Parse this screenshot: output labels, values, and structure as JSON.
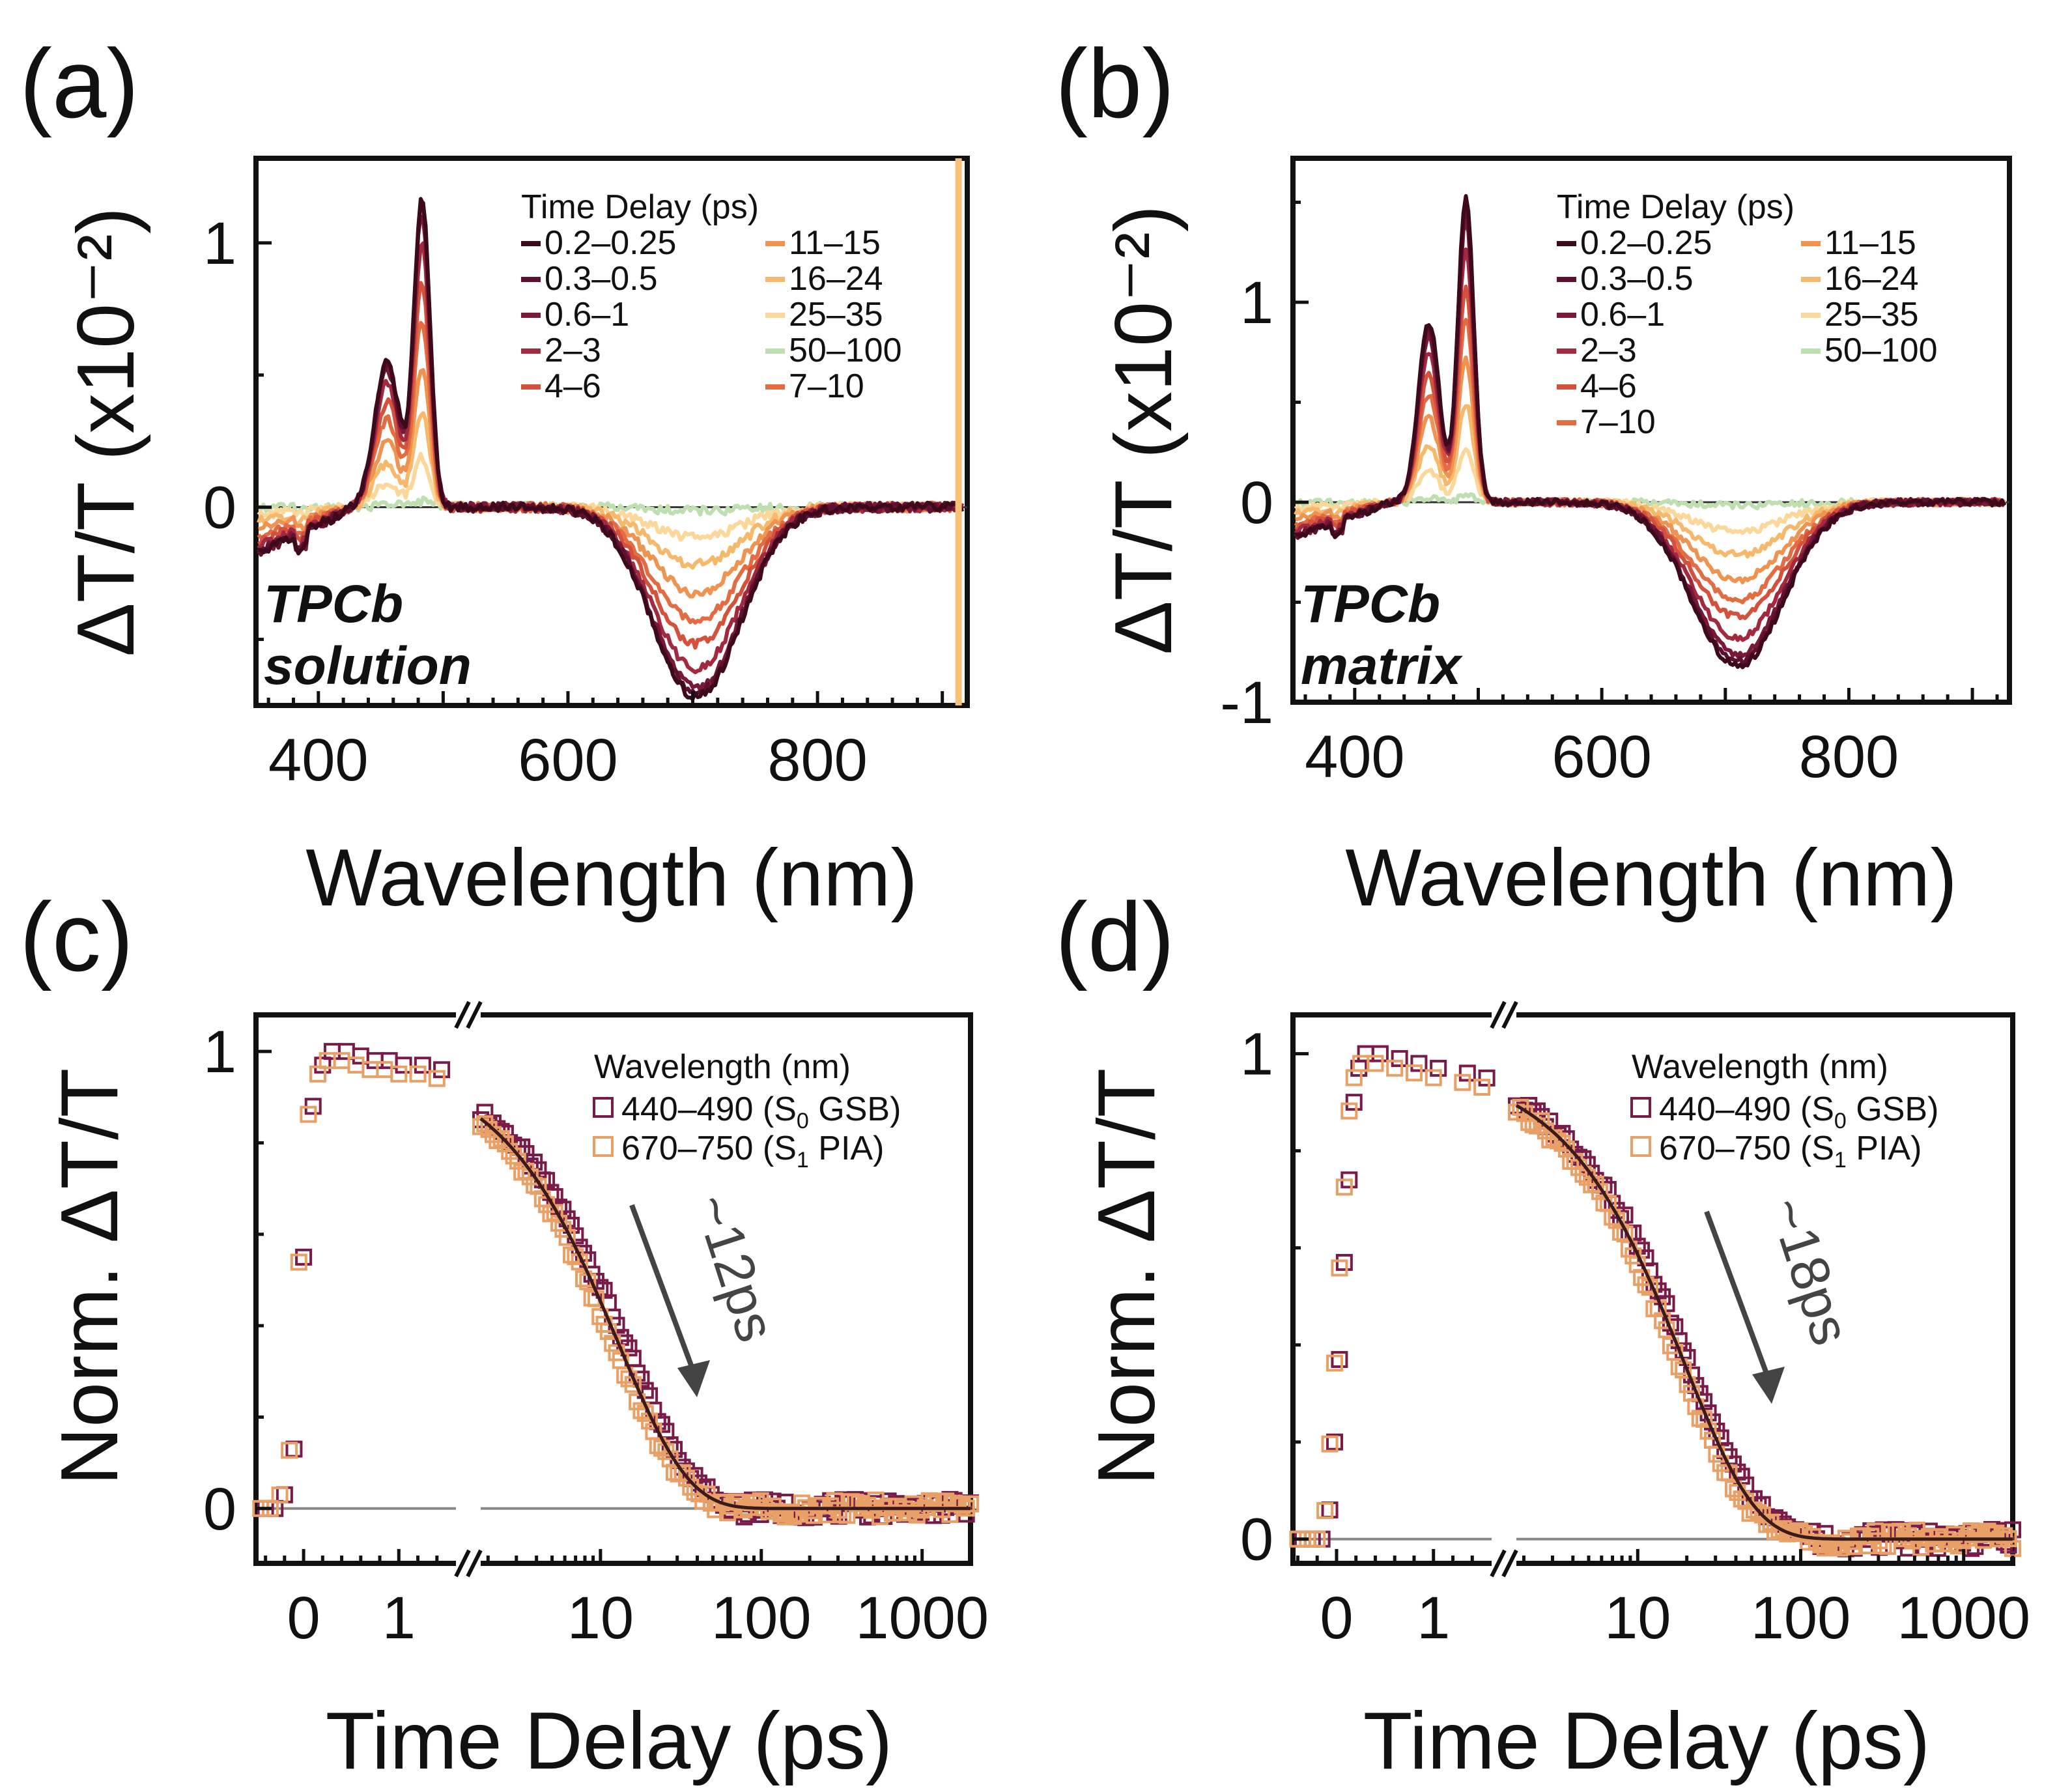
{
  "panels": [
    {
      "letter": "(a)",
      "type": "spectra",
      "sample_line1": "TPCb",
      "sample_line2": "solution",
      "legend_title": "Time Delay (ps)",
      "chart_data": {
        "type": "line",
        "xlabel": "Wavelength (nm)",
        "ylabel": "ΔT/T (x10⁻²)",
        "xlim": [
          350,
          920
        ],
        "ylim": [
          -0.75,
          1.32
        ],
        "xticks": [
          "400",
          "600",
          "800"
        ],
        "yticks": [
          "0",
          "1"
        ],
        "series": [
          {
            "name": "0.2–0.25",
            "color": "#3d0a1c",
            "amp": 1.0
          },
          {
            "name": "0.3–0.5",
            "color": "#5e1030",
            "amp": 0.98
          },
          {
            "name": "0.6–1",
            "color": "#7a1838",
            "amp": 0.95
          },
          {
            "name": "2–3",
            "color": "#a3293e",
            "amp": 0.85
          },
          {
            "name": "4–6",
            "color": "#d4523c",
            "amp": 0.72
          },
          {
            "name": "7–10",
            "color": "#e36c42",
            "amp": 0.6
          },
          {
            "name": "11–15",
            "color": "#ef9350",
            "amp": 0.45
          },
          {
            "name": "16–24",
            "color": "#f6b86a",
            "amp": 0.3
          },
          {
            "name": "25–35",
            "color": "#fbd89a",
            "amp": 0.16
          },
          {
            "name": "50–100",
            "color": "#bfdfb0",
            "amp": 0.02
          }
        ],
        "peaks": [
          {
            "center": 455,
            "width": 14,
            "height": 0.55
          },
          {
            "center": 483,
            "width": 9,
            "height": 1.17
          }
        ],
        "pia": {
          "center": 703,
          "width": 50,
          "depth": -0.72
        },
        "uv_baseline": -0.18
      }
    },
    {
      "letter": "(b)",
      "type": "spectra",
      "sample_line1": "TPCb",
      "sample_line2": "matrix",
      "legend_title": "Time Delay (ps)",
      "chart_data": {
        "type": "line",
        "xlabel": "Wavelength (nm)",
        "ylabel": "ΔT/T (x10⁻²)",
        "xlim": [
          350,
          930
        ],
        "ylim": [
          -1.0,
          1.72
        ],
        "xticks": [
          "400",
          "600",
          "800"
        ],
        "yticks": [
          "-1",
          "0",
          "1"
        ],
        "series": [
          {
            "name": "0.2–0.25",
            "color": "#3d0a1c",
            "amp": 1.0
          },
          {
            "name": "0.3–0.5",
            "color": "#5e1030",
            "amp": 0.97
          },
          {
            "name": "0.6–1",
            "color": "#7a1838",
            "amp": 0.93
          },
          {
            "name": "2–3",
            "color": "#a3293e",
            "amp": 0.83
          },
          {
            "name": "4–6",
            "color": "#d4523c",
            "amp": 0.7
          },
          {
            "name": "7–10",
            "color": "#e36c42",
            "amp": 0.6
          },
          {
            "name": "11–15",
            "color": "#ef9350",
            "amp": 0.47
          },
          {
            "name": "16–24",
            "color": "#f6b86a",
            "amp": 0.32
          },
          {
            "name": "25–35",
            "color": "#fbd89a",
            "amp": 0.18
          },
          {
            "name": "50–100",
            "color": "#bfdfb0",
            "amp": 0.02
          }
        ],
        "peaks": [
          {
            "center": 460,
            "width": 12,
            "height": 0.9
          },
          {
            "center": 490,
            "width": 9,
            "height": 1.52
          }
        ],
        "pia": {
          "center": 710,
          "width": 52,
          "depth": -0.82
        },
        "uv_baseline": -0.18
      }
    },
    {
      "letter": "(c)",
      "type": "kinetics",
      "legend_title": "Wavelength (nm)",
      "lifetime": "~12ps",
      "chart_data": {
        "type": "scatter",
        "xlabel": "Time Delay (ps)",
        "ylabel": "Norm. ΔT/T",
        "ylim": [
          -0.12,
          1.08
        ],
        "linear_range": [
          -0.5,
          1.6
        ],
        "log_range": [
          1.8,
          2000
        ],
        "xticks_linear": [
          "0",
          "1"
        ],
        "xticks_log": [
          "10",
          "100",
          "1000"
        ],
        "yticks": [
          "0",
          "1"
        ],
        "tau_ps": 12,
        "series": [
          {
            "name": "440–490",
            "sub": "(S",
            "subscript": "0",
            "post": " GSB)",
            "color": "#7a1a48",
            "offset": 1.18
          },
          {
            "name": "670–750",
            "sub": "(S",
            "subscript": "1",
            "post": " PIA)",
            "color": "#e9a066",
            "offset": 1.0
          }
        ],
        "rise_points": [
          [
            -0.45,
            0.0
          ],
          [
            -0.35,
            0.0
          ],
          [
            -0.25,
            0.03
          ],
          [
            -0.15,
            0.13
          ],
          [
            -0.05,
            0.55
          ],
          [
            0.05,
            0.88
          ],
          [
            0.15,
            0.97
          ],
          [
            0.25,
            1.0
          ],
          [
            0.4,
            1.0
          ],
          [
            0.55,
            0.99
          ],
          [
            0.7,
            0.98
          ],
          [
            0.85,
            0.98
          ],
          [
            1.0,
            0.97
          ],
          [
            1.2,
            0.97
          ],
          [
            1.4,
            0.96
          ]
        ]
      }
    },
    {
      "letter": "(d)",
      "type": "kinetics",
      "legend_title": "Wavelength (nm)",
      "lifetime": "~18ps",
      "chart_data": {
        "type": "scatter",
        "xlabel": "Time Delay (ps)",
        "ylabel": "Norm. ΔT/T",
        "ylim": [
          -0.05,
          1.08
        ],
        "linear_range": [
          -0.45,
          1.6
        ],
        "log_range": [
          1.8,
          2000
        ],
        "xticks_linear": [
          "0",
          "1"
        ],
        "xticks_log": [
          "10",
          "100",
          "1000"
        ],
        "yticks": [
          "0",
          "1"
        ],
        "tau_ps": 18,
        "series": [
          {
            "name": "440–490",
            "sub": "(S",
            "subscript": "0",
            "post": " GSB)",
            "color": "#7a1a48",
            "offset": 1.15
          },
          {
            "name": "670–750",
            "sub": "(S",
            "subscript": "1",
            "post": " PIA)",
            "color": "#e9a066",
            "offset": 1.0
          }
        ],
        "rise_points": [
          [
            -0.4,
            0.0
          ],
          [
            -0.3,
            0.0
          ],
          [
            -0.2,
            0.0
          ],
          [
            -0.12,
            0.06
          ],
          [
            -0.07,
            0.2
          ],
          [
            -0.02,
            0.37
          ],
          [
            0.03,
            0.57
          ],
          [
            0.08,
            0.74
          ],
          [
            0.13,
            0.9
          ],
          [
            0.18,
            0.97
          ],
          [
            0.25,
            1.0
          ],
          [
            0.4,
            1.0
          ],
          [
            0.6,
            0.99
          ],
          [
            0.8,
            0.98
          ],
          [
            1.0,
            0.97
          ],
          [
            1.3,
            0.96
          ],
          [
            1.5,
            0.95
          ]
        ]
      }
    }
  ]
}
